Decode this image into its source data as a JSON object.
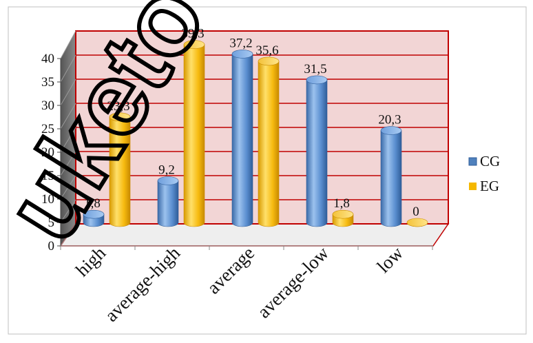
{
  "chart_data": {
    "type": "bar",
    "categories": [
      "high",
      "average-high",
      "average",
      "average-low",
      "low"
    ],
    "series": [
      {
        "name": "CG",
        "values": [
          1.8,
          9.2,
          37.2,
          31.5,
          20.3
        ],
        "labels": [
          "1,8",
          "9,2",
          "37,2",
          "31,5",
          "20,3"
        ],
        "color": "#4f81bd"
      },
      {
        "name": "EG",
        "values": [
          23.3,
          39.3,
          35.6,
          1.8,
          0
        ],
        "labels": [
          "23,3",
          "39,3",
          "35,6",
          "1,8",
          "0"
        ],
        "color": "#f5b800"
      }
    ],
    "ylim": [
      0,
      40
    ],
    "yticks": [
      0,
      5,
      10,
      15,
      20,
      25,
      30,
      35,
      40
    ],
    "grid": true,
    "legend": "right",
    "style": "3d-cylinder",
    "wall_color": "#f2d5d5",
    "wall_border_color": "#c00000"
  },
  "watermark": "uketov"
}
